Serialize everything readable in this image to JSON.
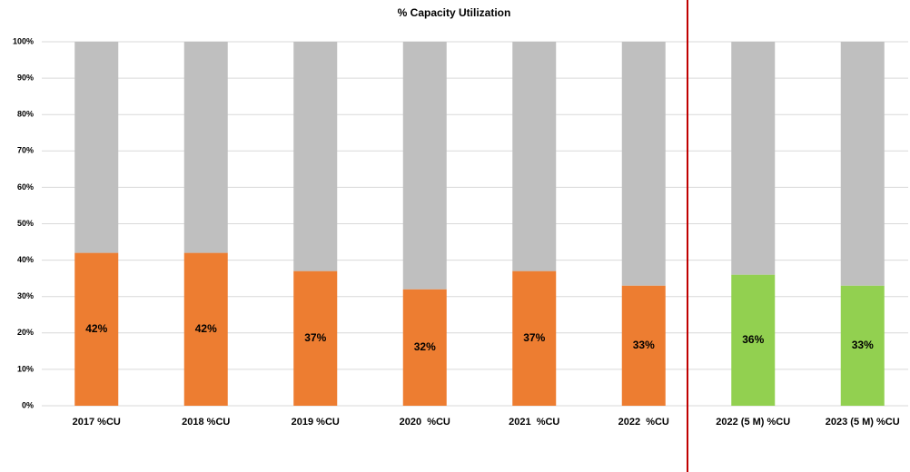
{
  "chart_data": {
    "type": "stacked_bar",
    "title": "% Capacity Utilization",
    "categories": [
      "2017 %CU",
      "2018 %CU",
      "2019 %CU",
      "2020  %CU",
      "2021  %CU",
      "2022  %CU",
      "2022 (5 M) %CU",
      "2023 (5 M) %CU"
    ],
    "series": [
      {
        "colors": [
          "#ed7d31",
          "#ed7d31",
          "#ed7d31",
          "#ed7d31",
          "#ed7d31",
          "#ed7d31",
          "#92d050",
          "#92d050"
        ],
        "values": [
          42,
          42,
          37,
          32,
          37,
          33,
          36,
          33
        ],
        "value_labels": [
          "42%",
          "42%",
          "37%",
          "32%",
          "37%",
          "33%",
          "36%",
          "33%"
        ]
      },
      {
        "color": "#bfbfbf",
        "values": [
          58,
          58,
          63,
          68,
          63,
          67,
          64,
          67
        ]
      }
    ],
    "ylim": [
      0,
      100
    ],
    "yticks": [
      {
        "value": 0,
        "label": "0%"
      },
      {
        "value": 10,
        "label": "10%"
      },
      {
        "value": 20,
        "label": "20%"
      },
      {
        "value": 30,
        "label": "30%"
      },
      {
        "value": 40,
        "label": "40%"
      },
      {
        "value": 50,
        "label": "50%"
      },
      {
        "value": 60,
        "label": "60%"
      },
      {
        "value": 70,
        "label": "70%"
      },
      {
        "value": 80,
        "label": "80%"
      },
      {
        "value": 90,
        "label": "90%"
      },
      {
        "value": 100,
        "label": "100%"
      }
    ],
    "grid": true
  }
}
